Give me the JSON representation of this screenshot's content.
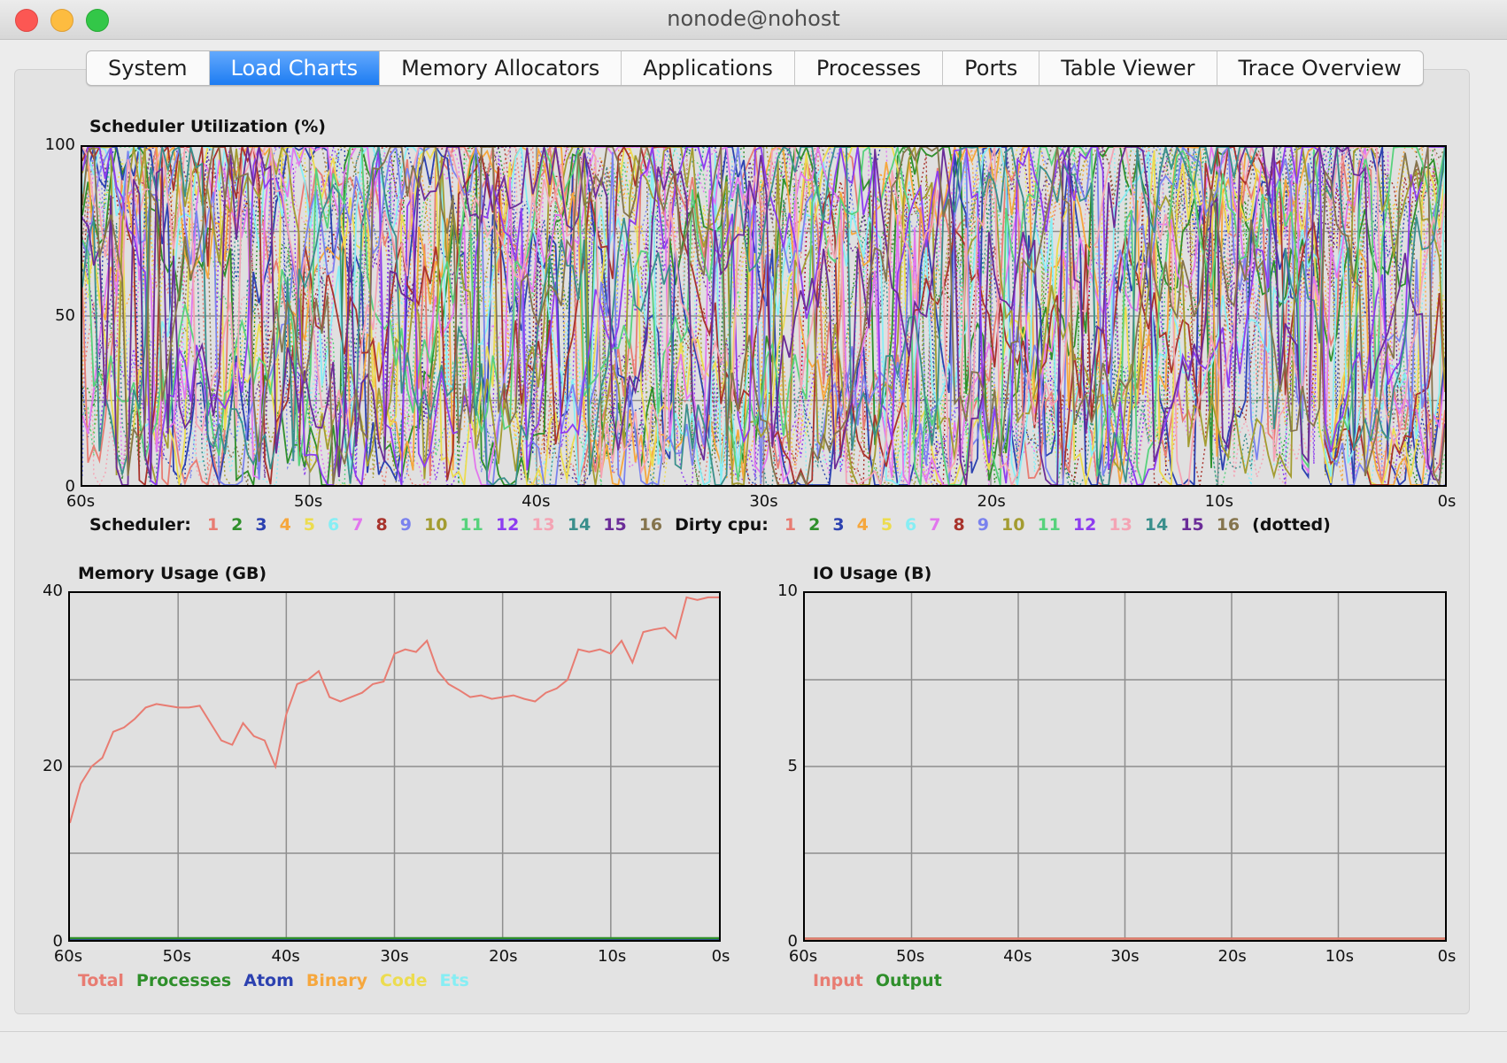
{
  "window": {
    "title": "nonode@nohost"
  },
  "tabs": [
    {
      "label": "System",
      "active": false
    },
    {
      "label": "Load Charts",
      "active": true
    },
    {
      "label": "Memory Allocators",
      "active": false
    },
    {
      "label": "Applications",
      "active": false
    },
    {
      "label": "Processes",
      "active": false
    },
    {
      "label": "Ports",
      "active": false
    },
    {
      "label": "Table Viewer",
      "active": false
    },
    {
      "label": "Trace Overview",
      "active": false
    }
  ],
  "palette": [
    "#e87c72",
    "#2f8f2b",
    "#2c41b0",
    "#f6a73d",
    "#ecdc4f",
    "#86eef4",
    "#e276ee",
    "#a8332c",
    "#7a82ee",
    "#a39c31",
    "#57d27c",
    "#8d3cf0",
    "#f4a4b4",
    "#3a8f8c",
    "#6b2c98",
    "#85744d"
  ],
  "legends": {
    "scheduler_label": "Scheduler:",
    "dirty_label": "Dirty cpu:",
    "dotted_note": "(dotted)",
    "memory": [
      {
        "label": "Total",
        "color": "#e87c72"
      },
      {
        "label": "Processes",
        "color": "#2f8f2b"
      },
      {
        "label": "Atom",
        "color": "#2c41b0"
      },
      {
        "label": "Binary",
        "color": "#f6a73d"
      },
      {
        "label": "Code",
        "color": "#ecdc4f"
      },
      {
        "label": "Ets",
        "color": "#86eef4"
      }
    ],
    "io": [
      {
        "label": "Input",
        "color": "#e87c72"
      },
      {
        "label": "Output",
        "color": "#2f8f2b"
      }
    ]
  },
  "chart_data": [
    {
      "type": "line",
      "title": "Scheduler Utilization (%)",
      "xlabel": "",
      "ylabel": "",
      "x_ticks": [
        "60s",
        "50s",
        "40s",
        "30s",
        "20s",
        "10s",
        "0s"
      ],
      "y_ticks": [
        "100",
        "50",
        "0"
      ],
      "xlim": [
        60,
        0
      ],
      "ylim": [
        0,
        100
      ],
      "series_names": [
        "1",
        "2",
        "3",
        "4",
        "5",
        "6",
        "7",
        "8",
        "9",
        "10",
        "11",
        "12",
        "13",
        "14",
        "15",
        "16"
      ],
      "series_note": "16 normal schedulers (solid) and 16 dirty cpu schedulers (dotted); values fluctuate rapidly between 0 and 100%"
    },
    {
      "type": "line",
      "title": "Memory Usage (GB)",
      "x_ticks": [
        "60s",
        "50s",
        "40s",
        "30s",
        "20s",
        "10s",
        "0s"
      ],
      "y_ticks": [
        "40",
        "20",
        "0"
      ],
      "xlim": [
        60,
        0
      ],
      "ylim": [
        0,
        40
      ],
      "x": [
        60,
        59,
        58,
        57,
        56,
        55,
        54,
        53,
        52,
        51,
        50,
        49,
        48,
        47,
        46,
        45,
        44,
        43,
        42,
        41,
        40,
        39,
        38,
        37,
        36,
        35,
        34,
        33,
        32,
        31,
        30,
        29,
        28,
        27,
        26,
        25,
        24,
        23,
        22,
        21,
        20,
        19,
        18,
        17,
        16,
        15,
        14,
        13,
        12,
        11,
        10,
        9,
        8,
        7,
        6,
        5,
        4,
        3,
        2,
        1,
        0
      ],
      "series": [
        {
          "name": "Total",
          "values": [
            13.5,
            18,
            20,
            21,
            24,
            24.5,
            25.5,
            26.8,
            27.2,
            27,
            26.8,
            26.8,
            27,
            25,
            23,
            22.5,
            25,
            23.5,
            23,
            20,
            26,
            29.5,
            30,
            31,
            28,
            27.5,
            28,
            28.5,
            29.5,
            29.8,
            33,
            33.5,
            33.2,
            34.5,
            31,
            29.5,
            28.8,
            28,
            28.2,
            27.8,
            28,
            28.2,
            27.8,
            27.5,
            28.5,
            29,
            30,
            33.5,
            33.2,
            33.5,
            33,
            34.5,
            32,
            35.5,
            35.8,
            36,
            34.8,
            39.5,
            39.2,
            39.5,
            39.5
          ]
        },
        {
          "name": "Processes",
          "values": [
            0.2,
            0.2,
            0.2,
            0.2,
            0.2,
            0.2,
            0.2,
            0.2,
            0.2,
            0.2,
            0.2,
            0.2,
            0.2,
            0.2,
            0.2,
            0.2,
            0.2,
            0.2,
            0.2,
            0.2,
            0.2,
            0.2,
            0.2,
            0.2,
            0.2,
            0.2,
            0.2,
            0.2,
            0.2,
            0.2,
            0.2,
            0.2,
            0.2,
            0.2,
            0.2,
            0.2,
            0.2,
            0.2,
            0.2,
            0.2,
            0.2,
            0.2,
            0.2,
            0.2,
            0.2,
            0.2,
            0.2,
            0.2,
            0.2,
            0.2,
            0.2,
            0.2,
            0.2,
            0.2,
            0.2,
            0.2,
            0.2,
            0.2,
            0.2,
            0.2,
            0.2
          ]
        },
        {
          "name": "Atom",
          "values": [
            0,
            0,
            0,
            0,
            0,
            0,
            0,
            0,
            0,
            0,
            0,
            0,
            0,
            0,
            0,
            0,
            0,
            0,
            0,
            0,
            0,
            0,
            0,
            0,
            0,
            0,
            0,
            0,
            0,
            0,
            0,
            0,
            0,
            0,
            0,
            0,
            0,
            0,
            0,
            0,
            0,
            0,
            0,
            0,
            0,
            0,
            0,
            0,
            0,
            0,
            0,
            0,
            0,
            0,
            0,
            0,
            0,
            0,
            0,
            0,
            0
          ]
        }
      ]
    },
    {
      "type": "line",
      "title": "IO Usage (B)",
      "x_ticks": [
        "60s",
        "50s",
        "40s",
        "30s",
        "20s",
        "10s",
        "0s"
      ],
      "y_ticks": [
        "10",
        "5",
        "0"
      ],
      "xlim": [
        60,
        0
      ],
      "ylim": [
        0,
        10
      ],
      "x": [
        60,
        0
      ],
      "series": [
        {
          "name": "Input",
          "values": [
            0,
            0
          ]
        },
        {
          "name": "Output",
          "values": [
            0,
            0
          ]
        }
      ]
    }
  ]
}
